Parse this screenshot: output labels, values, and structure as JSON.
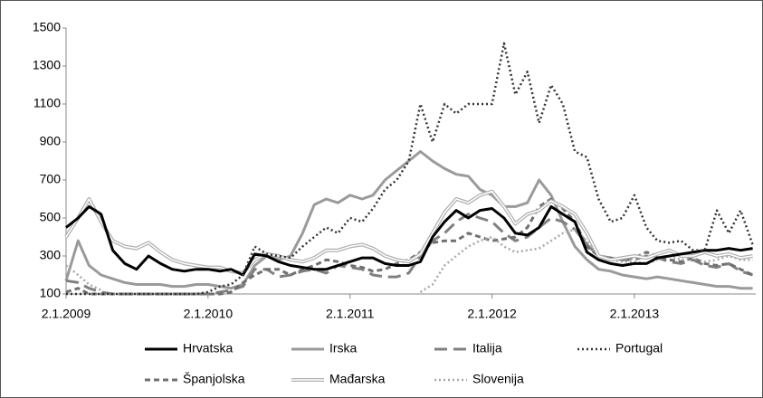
{
  "chart_data": {
    "type": "line",
    "x": [
      "2.1.2009",
      "2.2.2009",
      "2.3.2009",
      "2.4.2009",
      "2.5.2009",
      "2.6.2009",
      "2.7.2009",
      "2.8.2009",
      "2.9.2009",
      "2.10.2009",
      "2.11.2009",
      "2.12.2009",
      "2.1.2010",
      "2.2.2010",
      "2.3.2010",
      "2.4.2010",
      "2.5.2010",
      "2.6.2010",
      "2.7.2010",
      "2.8.2010",
      "2.9.2010",
      "2.10.2010",
      "2.11.2010",
      "2.12.2010",
      "2.1.2011",
      "2.2.2011",
      "2.3.2011",
      "2.4.2011",
      "2.5.2011",
      "2.6.2011",
      "2.7.2011",
      "2.8.2011",
      "2.9.2011",
      "2.10.2011",
      "2.11.2011",
      "2.12.2011",
      "2.1.2012",
      "2.2.2012",
      "2.3.2012",
      "2.4.2012",
      "2.5.2012",
      "2.6.2012",
      "2.7.2012",
      "2.8.2012",
      "2.9.2012",
      "2.10.2012",
      "2.11.2012",
      "2.12.2012",
      "2.1.2013",
      "2.2.2013",
      "2.3.2013",
      "2.4.2013",
      "2.5.2013",
      "2.6.2013",
      "2.7.2013",
      "2.8.2013",
      "2.9.2013",
      "2.10.2013",
      "2.11.2013"
    ],
    "xlim": [
      "2.1.2009",
      "10.11.2013"
    ],
    "xticks": [
      "2.1.2009",
      "2.1.2010",
      "2.1.2011",
      "2.1.2012",
      "2.1.2013"
    ],
    "ylim": [
      100,
      1500
    ],
    "yticks": [
      100,
      300,
      500,
      700,
      900,
      1100,
      1300,
      1500
    ],
    "grid": false,
    "legend": "bottom",
    "series": [
      {
        "name": "Hrvatska",
        "color": "#000000",
        "values": [
          450,
          500,
          560,
          520,
          330,
          260,
          230,
          300,
          260,
          230,
          220,
          230,
          230,
          220,
          230,
          200,
          310,
          300,
          270,
          250,
          240,
          230,
          230,
          250,
          270,
          290,
          290,
          260,
          250,
          250,
          270,
          400,
          480,
          540,
          500,
          540,
          550,
          500,
          420,
          410,
          450,
          560,
          520,
          480,
          320,
          280,
          260,
          250,
          260,
          260,
          290,
          300,
          310,
          320,
          330,
          330,
          340,
          330,
          340
        ]
      },
      {
        "name": "Irska",
        "color": "#9a9a9a",
        "values": [
          170,
          380,
          250,
          200,
          180,
          160,
          150,
          150,
          150,
          140,
          140,
          150,
          150,
          140,
          130,
          150,
          250,
          300,
          280,
          300,
          420,
          570,
          600,
          580,
          620,
          600,
          620,
          700,
          750,
          800,
          850,
          800,
          760,
          730,
          720,
          650,
          620,
          560,
          560,
          580,
          700,
          620,
          480,
          350,
          280,
          230,
          220,
          200,
          190,
          180,
          190,
          180,
          170,
          160,
          150,
          140,
          140,
          130,
          130
        ]
      },
      {
        "name": "Italija",
        "color": "#808080",
        "values": [
          170,
          160,
          130,
          110,
          100,
          100,
          100,
          100,
          100,
          100,
          100,
          100,
          100,
          110,
          120,
          140,
          230,
          230,
          190,
          200,
          220,
          230,
          210,
          250,
          240,
          230,
          200,
          190,
          190,
          210,
          300,
          380,
          420,
          480,
          520,
          500,
          480,
          420,
          380,
          400,
          450,
          500,
          480,
          440,
          360,
          300,
          290,
          280,
          280,
          300,
          290,
          270,
          260,
          280,
          250,
          240,
          260,
          220,
          200
        ]
      },
      {
        "name": "Portugal",
        "color": "#333333",
        "values": [
          100,
          100,
          100,
          100,
          100,
          100,
          100,
          100,
          100,
          100,
          100,
          100,
          110,
          140,
          150,
          200,
          350,
          310,
          300,
          290,
          350,
          400,
          450,
          420,
          500,
          480,
          550,
          650,
          700,
          800,
          1100,
          900,
          1100,
          1050,
          1100,
          1100,
          1100,
          1420,
          1150,
          1270,
          1000,
          1200,
          1100,
          850,
          820,
          600,
          480,
          500,
          620,
          450,
          380,
          370,
          380,
          330,
          330,
          540,
          420,
          540,
          360
        ]
      },
      {
        "name": "Španjolska",
        "color": "#707070",
        "values": [
          110,
          130,
          100,
          100,
          100,
          100,
          100,
          100,
          100,
          100,
          100,
          100,
          100,
          100,
          110,
          160,
          200,
          230,
          230,
          200,
          230,
          250,
          280,
          270,
          250,
          240,
          220,
          230,
          260,
          280,
          320,
          370,
          380,
          380,
          420,
          400,
          380,
          390,
          400,
          450,
          560,
          600,
          550,
          480,
          350,
          300,
          290,
          280,
          290,
          320,
          300,
          280,
          270,
          290,
          260,
          250,
          260,
          230,
          200
        ]
      },
      {
        "name": "Mađarska",
        "color": "#b0b0b0",
        "values": [
          400,
          500,
          600,
          480,
          380,
          350,
          340,
          370,
          320,
          280,
          260,
          250,
          240,
          240,
          220,
          210,
          280,
          310,
          300,
          280,
          270,
          290,
          330,
          330,
          350,
          360,
          340,
          300,
          280,
          270,
          310,
          420,
          530,
          600,
          580,
          620,
          640,
          560,
          470,
          520,
          540,
          590,
          560,
          520,
          420,
          300,
          280,
          290,
          300,
          290,
          310,
          330,
          300,
          300,
          320,
          300,
          310,
          290,
          300
        ]
      },
      {
        "name": "Slovenija",
        "color": "#a8a8a8",
        "values": [
          250,
          200,
          150,
          120,
          null,
          null,
          null,
          null,
          null,
          null,
          null,
          null,
          null,
          null,
          null,
          null,
          null,
          null,
          null,
          null,
          null,
          null,
          null,
          null,
          null,
          null,
          null,
          null,
          null,
          null,
          110,
          150,
          250,
          300,
          350,
          380,
          400,
          350,
          320,
          330,
          340,
          380,
          420,
          440,
          380,
          300,
          280,
          270,
          270,
          260,
          280,
          300,
          280,
          290,
          270,
          280,
          300,
          280,
          280
        ]
      }
    ]
  }
}
